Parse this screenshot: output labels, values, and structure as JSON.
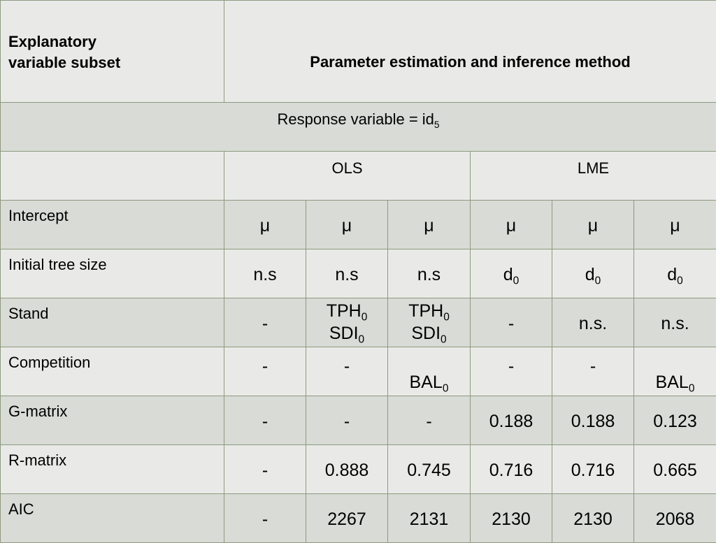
{
  "header": {
    "left_line1": "Explanatory",
    "left_line2": "variable subset",
    "right": "Parameter estimation and inference method"
  },
  "response": {
    "text": "Response variable = id",
    "sub": "5"
  },
  "methods": [
    "OLS",
    "LME"
  ],
  "rows": [
    {
      "label": "Intercept",
      "cells": [
        "μ",
        "μ",
        "μ",
        "μ",
        "μ",
        "μ"
      ]
    },
    {
      "label": "Initial tree size",
      "cells": [
        "n.s",
        "n.s",
        "n.s",
        "d",
        "d",
        "d"
      ],
      "subs": [
        "",
        "",
        "",
        "0",
        "0",
        "0"
      ]
    },
    {
      "label": "Stand",
      "cells": [
        "-",
        "TPH",
        "TPH",
        "-",
        "n.s.",
        "n.s."
      ],
      "subs": [
        "",
        "0",
        "0",
        "",
        "",
        ""
      ],
      "cells2": [
        "",
        "SDI",
        "SDI",
        "",
        "",
        ""
      ],
      "subs2": [
        "",
        "0",
        "0",
        "",
        "",
        ""
      ]
    },
    {
      "label": "Competition",
      "cells": [
        "-",
        "-",
        "BAL",
        "-",
        "-",
        "BAL"
      ],
      "subs": [
        "",
        "",
        "0",
        "",
        "",
        "0"
      ]
    },
    {
      "label": "G-matrix",
      "cells": [
        "-",
        "-",
        "-",
        "0.188",
        "0.188",
        "0.123"
      ]
    },
    {
      "label": "R-matrix",
      "cells": [
        "-",
        "0.888",
        "0.745",
        "0.716",
        "0.716",
        "0.665"
      ]
    },
    {
      "label": "AIC",
      "cells": [
        "-",
        "2267",
        "2131",
        "2130",
        "2130",
        "2068"
      ]
    }
  ]
}
